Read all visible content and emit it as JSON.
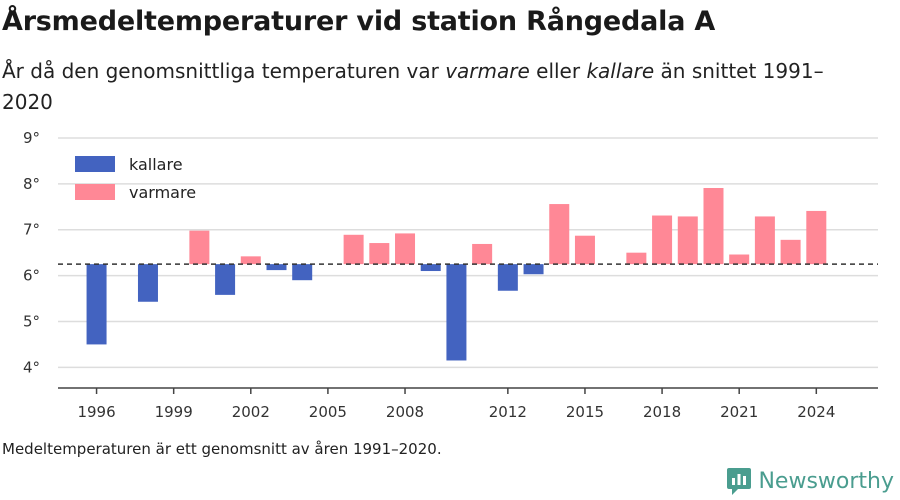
{
  "title": "Årsmedeltemperaturer vid station Rångedala A",
  "subtitle": {
    "part1": "År då den genomsnittliga temperaturen var ",
    "warm_word": "varmare",
    "part2": " eller ",
    "cold_word": "kallare",
    "part3": " än snittet 1991–2020"
  },
  "footnote": "Medeltemperaturen är ett genomsnitt av åren 1991–2020.",
  "brand": "Newsworthy",
  "colors": {
    "colder": "#4363c0",
    "warmer": "#ff8896",
    "grid": "#dddddd",
    "baseline": "#333333"
  },
  "chart_data": {
    "type": "bar",
    "baseline": 6.25,
    "ylim": [
      3.55,
      9.0
    ],
    "yticks": [
      4,
      5,
      6,
      7,
      8,
      9
    ],
    "ytick_labels": [
      "4°",
      "5°",
      "6°",
      "7°",
      "8°",
      "9°"
    ],
    "xlim": [
      1994.5,
      2026.4
    ],
    "xticks": [
      1996,
      1999,
      2002,
      2005,
      2008,
      2012,
      2015,
      2018,
      2021,
      2024
    ],
    "xtick_labels": [
      "1996",
      "1999",
      "2002",
      "2005",
      "2008",
      "2012",
      "2015",
      "2018",
      "2021",
      "2024"
    ],
    "legend": [
      {
        "label": "kallare",
        "key": "colder"
      },
      {
        "label": "varmare",
        "key": "warmer"
      }
    ],
    "legend_position": "top-left",
    "years": [
      1996,
      1998,
      2000,
      2001,
      2002,
      2003,
      2004,
      2006,
      2007,
      2008,
      2009,
      2010,
      2011,
      2012,
      2013,
      2014,
      2015,
      2017,
      2018,
      2019,
      2020,
      2021,
      2022,
      2023,
      2024
    ],
    "values": [
      4.5,
      5.43,
      6.98,
      5.58,
      6.42,
      6.12,
      5.9,
      6.89,
      6.71,
      6.92,
      6.1,
      4.15,
      6.69,
      5.67,
      6.03,
      7.56,
      6.87,
      6.5,
      7.31,
      7.29,
      7.91,
      6.46,
      7.29,
      6.78,
      7.41
    ]
  }
}
